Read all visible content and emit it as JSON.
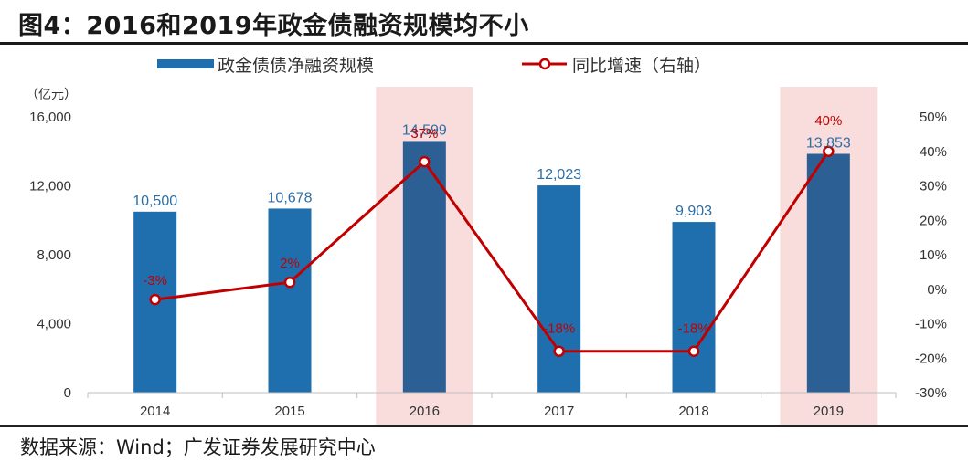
{
  "title": "图4：2016和2019年政金债融资规模均不小",
  "source": "数据来源：Wind；广发证券发展研究中心",
  "chart_data": {
    "type": "bar",
    "categories": [
      "2014",
      "2015",
      "2016",
      "2017",
      "2018",
      "2019"
    ],
    "series": [
      {
        "name": "政金债债净融资规模",
        "kind": "bar",
        "axis": "left",
        "values": [
          10500,
          10678,
          14599,
          12023,
          9903,
          13853
        ],
        "labels": [
          "10,500",
          "10,678",
          "14,599",
          "12,023",
          "9,903",
          "13,853"
        ]
      },
      {
        "name": "同比增速（右轴）",
        "kind": "line",
        "axis": "right",
        "values": [
          -3,
          2,
          37,
          -18,
          -18,
          40
        ],
        "labels": [
          "-3%",
          "2%",
          "37%",
          "-18%",
          "-18%",
          "40%"
        ]
      }
    ],
    "highlighted_categories": [
      "2016",
      "2019"
    ],
    "left_axis": {
      "unit_label": "（亿元）",
      "ylim": [
        0,
        16000
      ],
      "ticks": [
        "0",
        "4,000",
        "8,000",
        "12,000",
        "16,000"
      ]
    },
    "right_axis": {
      "ylim": [
        -30,
        50
      ],
      "ticks": [
        "-30%",
        "-20%",
        "-10%",
        "0%",
        "10%",
        "20%",
        "30%",
        "40%",
        "50%"
      ]
    },
    "legend_position": "top",
    "grid": false,
    "colors": {
      "bar": "#1f6fae",
      "bar_highlight": "#2c5f94",
      "line": "#c00000",
      "highlight_band": "#f9dcdc"
    }
  }
}
